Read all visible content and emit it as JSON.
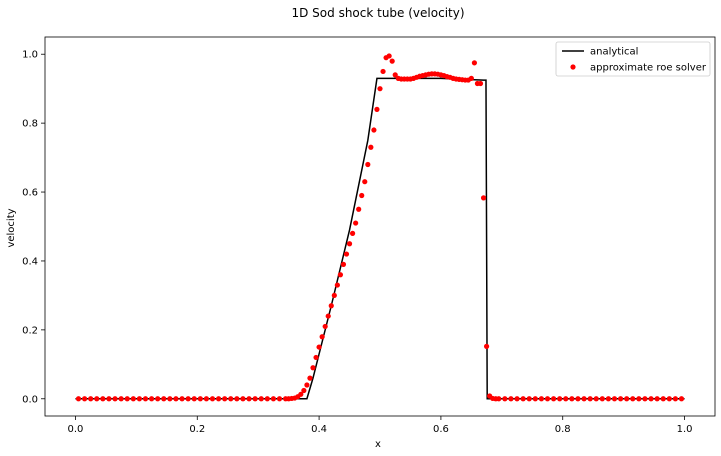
{
  "chart_data": {
    "type": "line",
    "title": "1D Sod shock tube (velocity)",
    "xlabel": "x",
    "ylabel": "velocity",
    "xlim": [
      -0.05,
      1.05
    ],
    "ylim": [
      -0.05,
      1.05
    ],
    "xticks": [
      0.0,
      0.2,
      0.4,
      0.6,
      0.8,
      1.0
    ],
    "xtick_labels": [
      "0.0",
      "0.2",
      "0.4",
      "0.6",
      "0.8",
      "1.0"
    ],
    "yticks": [
      0.0,
      0.2,
      0.4,
      0.6,
      0.8,
      1.0
    ],
    "ytick_labels": [
      "0.0",
      "0.2",
      "0.4",
      "0.6",
      "0.8",
      "1.0"
    ],
    "grid": false,
    "legend_position": "top-right",
    "colors": {
      "analytical": "#000000",
      "approximate": "#ff0000"
    },
    "legend": [
      "analytical",
      "approximate roe solver"
    ],
    "series": [
      {
        "name": "analytical",
        "style": "line",
        "x": [
          0.0,
          0.38,
          0.39,
          0.42,
          0.45,
          0.48,
          0.495,
          0.6,
          0.67,
          0.674,
          0.676,
          1.0
        ],
        "y": [
          0.0,
          0.0,
          0.06,
          0.27,
          0.49,
          0.75,
          0.93,
          0.93,
          0.925,
          0.925,
          0.0,
          0.0
        ]
      },
      {
        "name": "approximate roe solver",
        "style": "scatter",
        "x": [
          0.005,
          0.015,
          0.025,
          0.035,
          0.045,
          0.055,
          0.065,
          0.075,
          0.085,
          0.095,
          0.105,
          0.115,
          0.125,
          0.135,
          0.145,
          0.155,
          0.165,
          0.175,
          0.185,
          0.195,
          0.205,
          0.215,
          0.225,
          0.235,
          0.245,
          0.255,
          0.265,
          0.275,
          0.285,
          0.295,
          0.305,
          0.315,
          0.325,
          0.335,
          0.345,
          0.35,
          0.355,
          0.36,
          0.365,
          0.37,
          0.375,
          0.38,
          0.385,
          0.39,
          0.395,
          0.4,
          0.405,
          0.41,
          0.415,
          0.42,
          0.425,
          0.43,
          0.435,
          0.44,
          0.445,
          0.45,
          0.455,
          0.46,
          0.465,
          0.47,
          0.475,
          0.48,
          0.485,
          0.49,
          0.495,
          0.5,
          0.505,
          0.51,
          0.515,
          0.52,
          0.525,
          0.53,
          0.535,
          0.54,
          0.545,
          0.55,
          0.555,
          0.56,
          0.565,
          0.57,
          0.575,
          0.58,
          0.585,
          0.59,
          0.595,
          0.6,
          0.605,
          0.61,
          0.615,
          0.62,
          0.625,
          0.63,
          0.635,
          0.64,
          0.645,
          0.65,
          0.655,
          0.66,
          0.665,
          0.67,
          0.675,
          0.68,
          0.685,
          0.69,
          0.695,
          0.705,
          0.715,
          0.725,
          0.735,
          0.745,
          0.755,
          0.765,
          0.775,
          0.785,
          0.795,
          0.805,
          0.815,
          0.825,
          0.835,
          0.845,
          0.855,
          0.865,
          0.875,
          0.885,
          0.895,
          0.905,
          0.915,
          0.925,
          0.935,
          0.945,
          0.955,
          0.965,
          0.975,
          0.985,
          0.995
        ],
        "y": [
          0.0,
          0.0,
          0.0,
          0.0,
          0.0,
          0.0,
          0.0,
          0.0,
          0.0,
          0.0,
          0.0,
          0.0,
          0.0,
          0.0,
          0.0,
          0.0,
          0.0,
          0.0,
          0.0,
          0.0,
          0.0,
          0.0,
          0.0,
          0.0,
          0.0,
          0.0,
          0.0,
          0.0,
          0.0,
          0.0,
          0.0,
          0.0,
          0.0,
          0.0,
          0.0,
          0.0,
          0.001,
          0.002,
          0.006,
          0.013,
          0.024,
          0.04,
          0.06,
          0.09,
          0.12,
          0.15,
          0.18,
          0.21,
          0.24,
          0.27,
          0.3,
          0.33,
          0.36,
          0.39,
          0.42,
          0.45,
          0.48,
          0.51,
          0.55,
          0.59,
          0.63,
          0.68,
          0.73,
          0.78,
          0.84,
          0.9,
          0.95,
          0.99,
          0.995,
          0.98,
          0.94,
          0.93,
          0.928,
          0.928,
          0.928,
          0.928,
          0.93,
          0.933,
          0.936,
          0.938,
          0.94,
          0.942,
          0.943,
          0.943,
          0.942,
          0.94,
          0.938,
          0.935,
          0.933,
          0.93,
          0.928,
          0.927,
          0.926,
          0.925,
          0.925,
          0.93,
          0.975,
          0.915,
          0.915,
          0.583,
          0.152,
          0.008,
          0.001,
          0.0,
          0.0,
          0.0,
          0.0,
          0.0,
          0.0,
          0.0,
          0.0,
          0.0,
          0.0,
          0.0,
          0.0,
          0.0,
          0.0,
          0.0,
          0.0,
          0.0,
          0.0,
          0.0,
          0.0,
          0.0,
          0.0,
          0.0,
          0.0,
          0.0,
          0.0,
          0.0,
          0.0,
          0.0,
          0.0,
          0.0,
          0.0
        ]
      }
    ]
  }
}
